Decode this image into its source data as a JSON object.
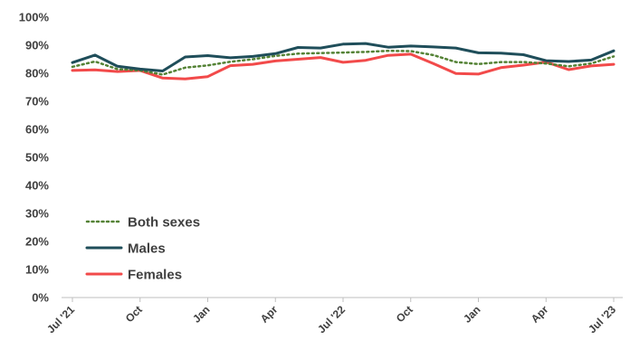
{
  "chart_data": {
    "type": "line",
    "title": "",
    "xlabel": "",
    "ylabel": "",
    "ylim": [
      0,
      100
    ],
    "y_ticks": [
      "0%",
      "10%",
      "20%",
      "30%",
      "40%",
      "50%",
      "60%",
      "70%",
      "80%",
      "90%",
      "100%"
    ],
    "x": [
      "Jul '21",
      "Aug '21",
      "Sep '21",
      "Oct '21",
      "Nov '21",
      "Dec '21",
      "Jan '22",
      "Feb '22",
      "Mar '22",
      "Apr '22",
      "May '22",
      "Jun '22",
      "Jul '22",
      "Aug '22",
      "Sep '22",
      "Oct '22",
      "Nov '22",
      "Dec '22",
      "Jan '23",
      "Feb '23",
      "Mar '23",
      "Apr '23",
      "May '23",
      "Jun '23",
      "Jul '23"
    ],
    "x_tick_labels": [
      "Jul '21",
      "Oct",
      "Jan",
      "Apr",
      "Jul '22",
      "Oct",
      "Jan",
      "Apr",
      "Jul '23"
    ],
    "x_tick_positions": [
      0,
      3,
      6,
      9,
      12,
      15,
      18,
      21,
      24
    ],
    "grid": false,
    "legend_position": "bottom-left",
    "series": [
      {
        "name": "Both sexes",
        "color": "#548235",
        "style": "dotted",
        "values": [
          82.3,
          84.2,
          81.5,
          81.0,
          79.5,
          82.0,
          82.8,
          84.1,
          85.0,
          86.2,
          87.0,
          87.2,
          87.4,
          87.6,
          88.0,
          87.9,
          86.5,
          84.0,
          83.3,
          84.0,
          84.0,
          83.5,
          82.5,
          83.5,
          86.0
        ]
      },
      {
        "name": "Males",
        "color": "#1f4e5a",
        "style": "solid",
        "values": [
          83.8,
          86.5,
          82.5,
          81.5,
          80.8,
          85.8,
          86.3,
          85.5,
          86.0,
          87.0,
          89.2,
          89.0,
          90.4,
          90.6,
          89.3,
          89.7,
          89.4,
          89.0,
          87.3,
          87.2,
          86.6,
          84.5,
          84.2,
          84.7,
          88.0
        ]
      },
      {
        "name": "Females",
        "color": "#f24a4a",
        "style": "solid",
        "values": [
          81.0,
          81.2,
          80.6,
          81.0,
          78.3,
          78.0,
          78.8,
          82.7,
          83.2,
          84.4,
          85.0,
          85.6,
          83.9,
          84.6,
          86.4,
          86.8,
          83.5,
          79.9,
          79.7,
          82.0,
          82.9,
          84.0,
          81.3,
          82.6,
          83.2
        ]
      }
    ]
  }
}
